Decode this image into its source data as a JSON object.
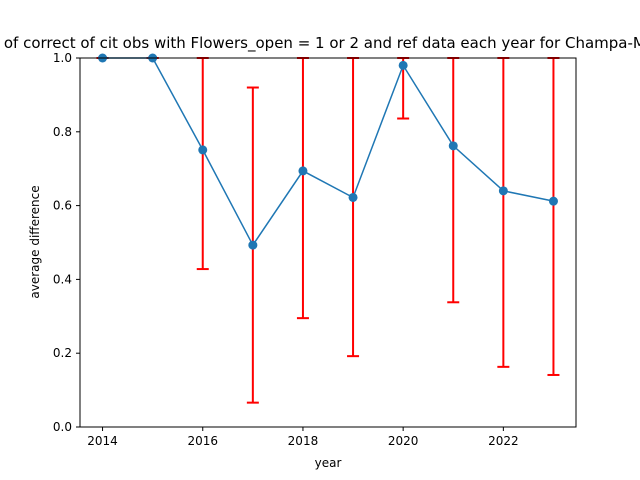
{
  "chart_data": {
    "type": "line",
    "title": "Fraction of correct of cit obs with Flowers_open = 1 or 2 and ref data each year for Champa-Magnolia",
    "xlabel": "year",
    "ylabel": "average difference",
    "xlim": [
      2013.55,
      2023.45
    ],
    "ylim": [
      0.0,
      1.0
    ],
    "x_ticks": [
      2014,
      2016,
      2018,
      2020,
      2022
    ],
    "y_ticks": [
      0.0,
      0.2,
      0.4,
      0.6,
      0.8,
      1.0
    ],
    "y_tick_labels": [
      "0.0",
      "0.2",
      "0.4",
      "0.6",
      "0.8",
      "1.0"
    ],
    "grid": false,
    "x": [
      2014,
      2015,
      2016,
      2017,
      2018,
      2019,
      2020,
      2021,
      2022,
      2023
    ],
    "series": [
      {
        "values": [
          1.0,
          1.0,
          0.751,
          0.493,
          0.694,
          0.622,
          0.98,
          0.762,
          0.64,
          0.612
        ],
        "color": "#1f77b4",
        "marker": "circle"
      }
    ],
    "error_bars": {
      "color": "#ff0000",
      "lower": [
        1.0,
        1.0,
        0.428,
        0.066,
        0.295,
        0.192,
        0.836,
        0.338,
        0.163,
        0.141
      ],
      "upper": [
        1.0,
        1.0,
        1.0,
        0.92,
        1.0,
        1.0,
        1.0,
        1.0,
        1.0,
        1.0
      ]
    }
  }
}
